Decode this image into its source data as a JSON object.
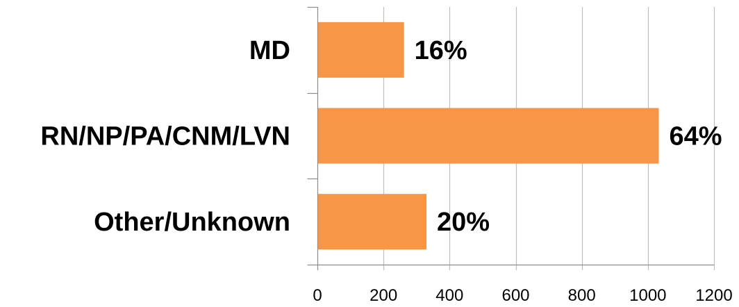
{
  "chart_data": {
    "type": "bar",
    "orientation": "horizontal",
    "categories": [
      "MD",
      "RN/NP/PA/CNM/LVN",
      "Other/Unknown"
    ],
    "values": [
      262,
      1033,
      330
    ],
    "data_labels": [
      "16%",
      "64%",
      "20%"
    ],
    "xlim": [
      0,
      1200
    ],
    "x_ticks": [
      0,
      200,
      400,
      600,
      800,
      1000,
      1200
    ],
    "grid": "vertical",
    "legend": "none",
    "bar_color": "#F79646"
  }
}
